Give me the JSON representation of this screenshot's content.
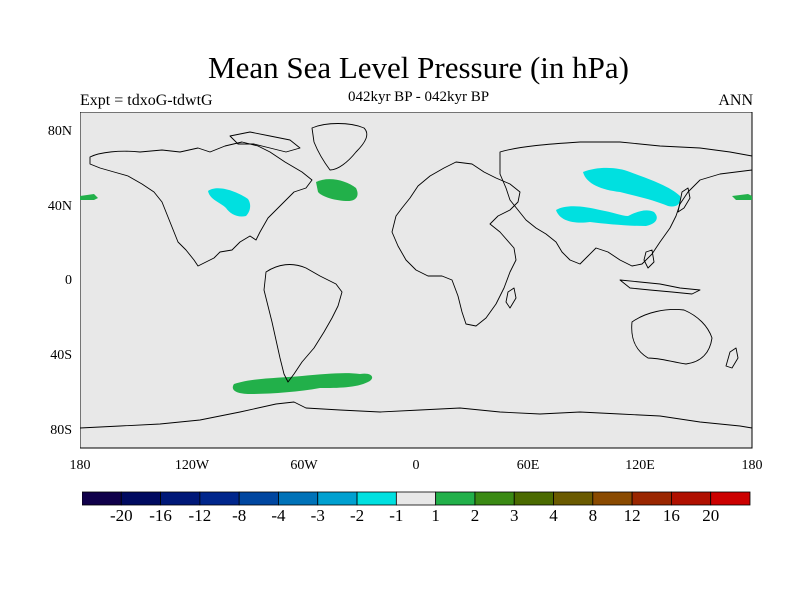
{
  "title": "Mean Sea Level Pressure (in hPa)",
  "subtitle": "042kyr BP - 042kyr BP",
  "experiment": "Expt = tdxoG-tdwtG",
  "season": "ANN",
  "colors": {
    "background": "#e8e8e8",
    "land_outline": "#000000",
    "anomaly_neg_1": "#00e0e0",
    "anomaly_pos_1": "#22b04a"
  },
  "map": {
    "lat_ticks": [
      "80N",
      "40N",
      "0",
      "40S",
      "80S"
    ],
    "lon_ticks": [
      "180",
      "120W",
      "60W",
      "0",
      "60E",
      "120E",
      "180"
    ],
    "anomaly_regions": [
      {
        "name": "north-america-low",
        "category": "-1"
      },
      {
        "name": "north-atlantic-high",
        "category": "1"
      },
      {
        "name": "siberia-low",
        "category": "-1"
      },
      {
        "name": "central-asia-low",
        "category": "-1"
      },
      {
        "name": "southern-ocean-high",
        "category": "1"
      },
      {
        "name": "west-pacific-high",
        "category": "1"
      },
      {
        "name": "east-pacific-high",
        "category": "1"
      }
    ]
  },
  "colorbar": {
    "labels": [
      "-20",
      "-16",
      "-12",
      "-8",
      "-4",
      "-3",
      "-2",
      "-1",
      "1",
      "2",
      "3",
      "4",
      "8",
      "12",
      "16",
      "20"
    ],
    "colors": [
      "#10004a",
      "#000a60",
      "#001878",
      "#00268c",
      "#0046a0",
      "#0072b8",
      "#00a0d0",
      "#00e0e0",
      "#e8e8e8",
      "#22b04a",
      "#3a8a14",
      "#4a6a00",
      "#6a5a00",
      "#8a4a00",
      "#9a2600",
      "#b01000",
      "#cc0000"
    ]
  }
}
